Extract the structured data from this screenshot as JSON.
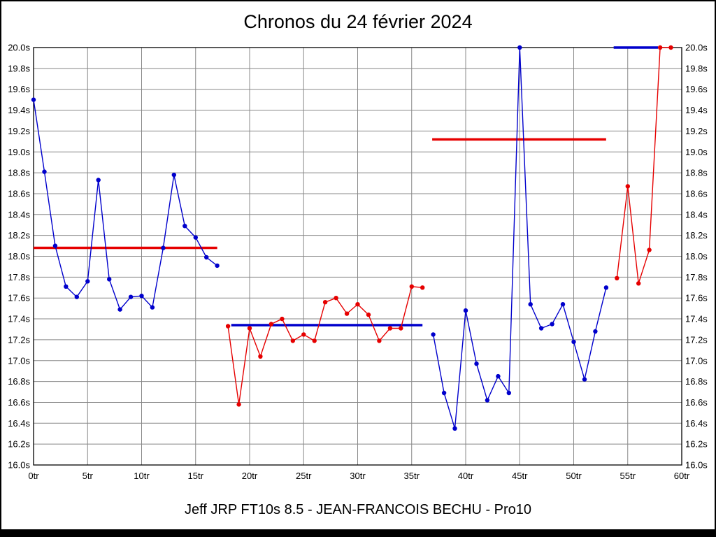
{
  "page": {
    "title": "Chronos du 24 février 2024",
    "caption": "Jeff JRP FT10s 8.5 - JEAN-FRANCOIS BECHU - Pro10"
  },
  "chart_data": {
    "type": "line",
    "title": "Chronos du 24 février 2024",
    "caption": "Jeff JRP FT10s 8.5 - JEAN-FRANCOIS BECHU - Pro10",
    "xlabel": "",
    "ylabel": "",
    "x_unit": "tr",
    "y_unit": "s",
    "xlim": [
      0,
      60
    ],
    "ylim": [
      16.0,
      20.0
    ],
    "x_tick_step": 5,
    "y_tick_step": 0.2,
    "x_tick_labels": [
      "0tr",
      "5tr",
      "10tr",
      "15tr",
      "20tr",
      "25tr",
      "30tr",
      "35tr",
      "40tr",
      "45tr",
      "50tr",
      "55tr",
      "60tr"
    ],
    "y_tick_labels": [
      "16.0s",
      "16.2s",
      "16.4s",
      "16.6s",
      "16.8s",
      "17.0s",
      "17.2s",
      "17.4s",
      "17.6s",
      "17.8s",
      "18.0s",
      "18.2s",
      "18.4s",
      "18.6s",
      "18.8s",
      "19.0s",
      "19.2s",
      "19.4s",
      "19.6s",
      "19.8s",
      "20.0s"
    ],
    "grid": true,
    "legend": "none",
    "colors": {
      "blue": "#0000cc",
      "red": "#e60000",
      "grid": "#888888"
    },
    "series": [
      {
        "name": "stint-1-blue",
        "color": "blue",
        "start_lap": 0,
        "lap_times": [
          19.5,
          18.81,
          18.1,
          17.71,
          17.61,
          17.76,
          18.73,
          17.78,
          17.49,
          17.61,
          17.62,
          17.51,
          18.08,
          18.78,
          18.29,
          18.18,
          17.99,
          17.91
        ]
      },
      {
        "name": "stint-2-red",
        "color": "red",
        "start_lap": 18,
        "lap_times": [
          17.33,
          16.58,
          17.31,
          17.04,
          17.35,
          17.4,
          17.19,
          17.25,
          17.19,
          17.56,
          17.6,
          17.45,
          17.54,
          17.44,
          17.19,
          17.31,
          17.31,
          17.71,
          17.7
        ]
      },
      {
        "name": "stint-3-blue",
        "color": "blue",
        "start_lap": 37,
        "lap_times": [
          17.25,
          16.69,
          16.35,
          17.48,
          16.97,
          16.62,
          16.85,
          16.69,
          20.0,
          17.54,
          17.31,
          17.35,
          17.54,
          17.18,
          16.82,
          17.28,
          17.7
        ]
      },
      {
        "name": "stint-4-red",
        "color": "red",
        "start_lap": 54,
        "lap_times": [
          17.79,
          18.67,
          17.74,
          18.06,
          20.0,
          20.0
        ]
      }
    ],
    "average_lines": [
      {
        "name": "stint-1",
        "color": "red",
        "time": 18.08,
        "from_lap": 0,
        "to_lap": 17
      },
      {
        "name": "stint-2",
        "color": "blue",
        "time": 17.34,
        "from_lap": 18.3,
        "to_lap": 36
      },
      {
        "name": "stint-3",
        "color": "red",
        "time": 19.12,
        "from_lap": 36.9,
        "to_lap": 53
      },
      {
        "name": "stint-4",
        "color": "blue",
        "time": 20.0,
        "from_lap": 53.7,
        "to_lap": 57.8
      }
    ]
  }
}
